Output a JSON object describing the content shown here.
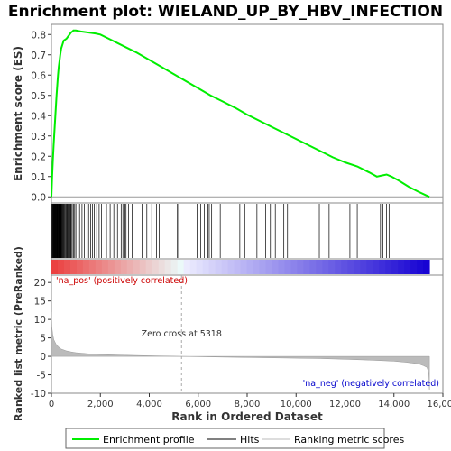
{
  "chart_data": {
    "type": "line",
    "title": "Enrichment plot: WIELAND_UP_BY_HBV_INFECTION",
    "es_panel": {
      "ylabel": "Enrichment score (ES)",
      "ylim": [
        -0.03,
        0.85
      ],
      "yticks": [
        0.0,
        0.1,
        0.2,
        0.3,
        0.4,
        0.5,
        0.6,
        0.7,
        0.8
      ],
      "ytick_labels": [
        "0.0",
        "0.1",
        "0.2",
        "0.3",
        "0.4",
        "0.5",
        "0.6",
        "0.7",
        "0.8"
      ],
      "series": [
        {
          "name": "Enrichment profile",
          "color": "#00ee00",
          "x": [
            0,
            30,
            60,
            90,
            120,
            150,
            180,
            210,
            240,
            270,
            300,
            330,
            360,
            400,
            450,
            500,
            560,
            620,
            680,
            740,
            800,
            860,
            900,
            1000,
            1200,
            1500,
            1800,
            2000,
            2500,
            3000,
            3500,
            4000,
            4500,
            5000,
            5500,
            6000,
            6500,
            7000,
            7500,
            8000,
            8500,
            9000,
            9500,
            10000,
            10500,
            11000,
            11500,
            12000,
            12500,
            13000,
            13300,
            13500,
            13700,
            13900,
            14200,
            14600,
            15000,
            15450
          ],
          "y": [
            0.0,
            0.1,
            0.18,
            0.25,
            0.32,
            0.38,
            0.44,
            0.5,
            0.55,
            0.6,
            0.64,
            0.67,
            0.7,
            0.73,
            0.75,
            0.77,
            0.775,
            0.78,
            0.79,
            0.8,
            0.81,
            0.815,
            0.82,
            0.82,
            0.815,
            0.81,
            0.805,
            0.8,
            0.77,
            0.74,
            0.71,
            0.675,
            0.64,
            0.605,
            0.57,
            0.535,
            0.5,
            0.47,
            0.44,
            0.405,
            0.375,
            0.345,
            0.315,
            0.285,
            0.255,
            0.225,
            0.195,
            0.17,
            0.15,
            0.12,
            0.1,
            0.105,
            0.11,
            0.1,
            0.08,
            0.05,
            0.025,
            0.0
          ]
        }
      ]
    },
    "hits_panel": {
      "name": "Hits",
      "positions": [
        20,
        40,
        60,
        80,
        95,
        110,
        125,
        140,
        155,
        170,
        185,
        200,
        215,
        230,
        245,
        260,
        275,
        290,
        305,
        320,
        340,
        360,
        380,
        400,
        420,
        440,
        460,
        480,
        510,
        540,
        570,
        600,
        630,
        660,
        690,
        720,
        750,
        780,
        810,
        850,
        900,
        950,
        1000,
        1150,
        1250,
        1350,
        1450,
        1520,
        1600,
        1680,
        1750,
        1850,
        1950,
        2050,
        2250,
        2400,
        2550,
        2700,
        2850,
        2920,
        3000,
        3050,
        3150,
        3300,
        3700,
        3900,
        4100,
        4300,
        4400,
        5150,
        5200,
        5950,
        6100,
        6250,
        6400,
        6450,
        6550,
        6900,
        7500,
        7700,
        7900,
        8400,
        8750,
        8950,
        9150,
        9500,
        9650,
        10950,
        11350,
        12200,
        12500,
        13450,
        13550,
        13700,
        13800
      ]
    },
    "ranked_panel": {
      "ylabel": "Ranked list metric (PreRanked)",
      "name": "Ranking metric scores",
      "ylim": [
        -10,
        22
      ],
      "yticks": [
        -10,
        -5,
        0,
        5,
        10,
        15,
        20
      ],
      "ytick_labels": [
        "-10",
        "-5",
        "0",
        "5",
        "10",
        "15",
        "20"
      ],
      "x": [
        0,
        20,
        50,
        100,
        150,
        200,
        300,
        400,
        600,
        800,
        1000,
        1500,
        2000,
        3000,
        4000,
        5318,
        7000,
        9000,
        11000,
        12000,
        13000,
        14000,
        14500,
        15000,
        15200,
        15350,
        15420,
        15450
      ],
      "y": [
        12,
        8,
        6,
        4.5,
        3.8,
        3.2,
        2.5,
        2.0,
        1.5,
        1.2,
        1.0,
        0.7,
        0.5,
        0.3,
        0.15,
        0.0,
        -0.2,
        -0.4,
        -0.6,
        -0.8,
        -1.0,
        -1.3,
        -1.6,
        -2.0,
        -2.5,
        -3.0,
        -4.5,
        -9.0
      ],
      "annotations": {
        "zero_cross": "Zero cross at 5318",
        "pos": "'na_pos' (positively correlated)",
        "neg": "'na_neg' (negatively correlated)"
      },
      "zero_cross_x": 5318
    },
    "xaxis": {
      "label": "Rank in Ordered Dataset",
      "xlim": [
        0,
        16000
      ],
      "ticks": [
        0,
        2000,
        4000,
        6000,
        8000,
        10000,
        12000,
        14000,
        16000
      ],
      "tick_labels": [
        "0",
        "2,000",
        "4,000",
        "6,000",
        "8,000",
        "10,000",
        "12,000",
        "14,000",
        "16,000"
      ],
      "n_genes": 15450
    },
    "legend": {
      "placement": "bottom",
      "items": [
        {
          "label": "Enrichment profile",
          "color": "#00ee00"
        },
        {
          "label": "Hits",
          "color": "#000000"
        },
        {
          "label": "Ranking metric scores",
          "color": "#bbbbbb"
        }
      ]
    },
    "colors": {
      "profile": "#00ee00",
      "hits": "#000000",
      "metric": "#bbbbbb",
      "pos_text": "#cc0000",
      "neg_text": "#0000cc"
    }
  }
}
